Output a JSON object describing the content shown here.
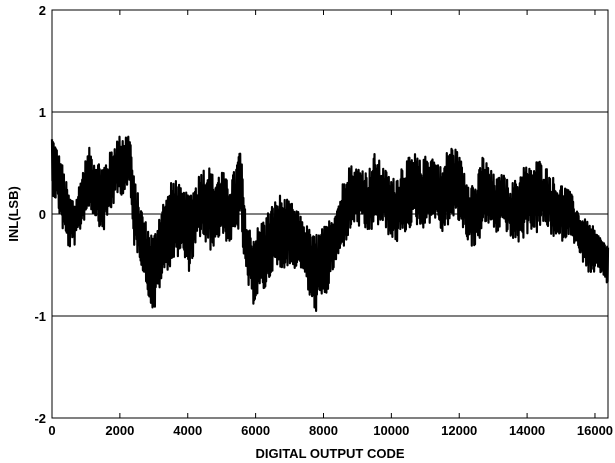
{
  "chart_data": {
    "type": "line",
    "xlabel": "DIGITAL OUTPUT CODE",
    "ylabel": "INL(LSB)",
    "xlim": [
      0,
      16384
    ],
    "ylim": [
      -2,
      2
    ],
    "x_ticks": [
      0,
      2000,
      4000,
      6000,
      8000,
      10000,
      12000,
      14000,
      16000
    ],
    "y_ticks": [
      -2,
      -1,
      0,
      1,
      2
    ],
    "grid": "horizontal",
    "series_color": "#000000",
    "envelope": [
      {
        "x": 0,
        "lo": 0.2,
        "hi": 0.8
      },
      {
        "x": 150,
        "lo": 0.1,
        "hi": 0.65
      },
      {
        "x": 300,
        "lo": -0.15,
        "hi": 0.5
      },
      {
        "x": 500,
        "lo": -0.35,
        "hi": 0.2
      },
      {
        "x": 700,
        "lo": -0.3,
        "hi": 0.15
      },
      {
        "x": 900,
        "lo": -0.1,
        "hi": 0.45
      },
      {
        "x": 1100,
        "lo": 0.05,
        "hi": 0.65
      },
      {
        "x": 1300,
        "lo": -0.05,
        "hi": 0.55
      },
      {
        "x": 1500,
        "lo": -0.2,
        "hi": 0.5
      },
      {
        "x": 1700,
        "lo": 0.0,
        "hi": 0.6
      },
      {
        "x": 1900,
        "lo": 0.15,
        "hi": 0.75
      },
      {
        "x": 2100,
        "lo": 0.2,
        "hi": 0.8
      },
      {
        "x": 2300,
        "lo": 0.25,
        "hi": 0.8
      },
      {
        "x": 2400,
        "lo": -0.3,
        "hi": 0.4
      },
      {
        "x": 2600,
        "lo": -0.45,
        "hi": 0.1
      },
      {
        "x": 2800,
        "lo": -0.75,
        "hi": -0.1
      },
      {
        "x": 3000,
        "lo": -1.0,
        "hi": -0.2
      },
      {
        "x": 3200,
        "lo": -0.7,
        "hi": 0.1
      },
      {
        "x": 3400,
        "lo": -0.55,
        "hi": 0.2
      },
      {
        "x": 3600,
        "lo": -0.5,
        "hi": 0.4
      },
      {
        "x": 3800,
        "lo": -0.35,
        "hi": 0.25
      },
      {
        "x": 4000,
        "lo": -0.6,
        "hi": 0.2
      },
      {
        "x": 4200,
        "lo": -0.4,
        "hi": 0.3
      },
      {
        "x": 4400,
        "lo": -0.2,
        "hi": 0.45
      },
      {
        "x": 4600,
        "lo": -0.4,
        "hi": 0.5
      },
      {
        "x": 4800,
        "lo": -0.3,
        "hi": 0.35
      },
      {
        "x": 5000,
        "lo": -0.2,
        "hi": 0.45
      },
      {
        "x": 5200,
        "lo": -0.3,
        "hi": 0.3
      },
      {
        "x": 5400,
        "lo": -0.25,
        "hi": 0.45
      },
      {
        "x": 5550,
        "lo": -0.1,
        "hi": 0.7
      },
      {
        "x": 5700,
        "lo": -0.6,
        "hi": 0.0
      },
      {
        "x": 5900,
        "lo": -0.9,
        "hi": -0.2
      },
      {
        "x": 6100,
        "lo": -0.8,
        "hi": -0.1
      },
      {
        "x": 6300,
        "lo": -0.75,
        "hi": 0.0
      },
      {
        "x": 6500,
        "lo": -0.55,
        "hi": 0.1
      },
      {
        "x": 6700,
        "lo": -0.6,
        "hi": 0.2
      },
      {
        "x": 6900,
        "lo": -0.5,
        "hi": 0.15
      },
      {
        "x": 7100,
        "lo": -0.55,
        "hi": 0.1
      },
      {
        "x": 7300,
        "lo": -0.5,
        "hi": 0.0
      },
      {
        "x": 7500,
        "lo": -0.7,
        "hi": -0.1
      },
      {
        "x": 7700,
        "lo": -1.0,
        "hi": -0.2
      },
      {
        "x": 7900,
        "lo": -0.9,
        "hi": -0.15
      },
      {
        "x": 8100,
        "lo": -0.8,
        "hi": -0.1
      },
      {
        "x": 8300,
        "lo": -0.55,
        "hi": 0.05
      },
      {
        "x": 8500,
        "lo": -0.4,
        "hi": 0.2
      },
      {
        "x": 8700,
        "lo": -0.25,
        "hi": 0.55
      },
      {
        "x": 8900,
        "lo": -0.1,
        "hi": 0.45
      },
      {
        "x": 9100,
        "lo": -0.15,
        "hi": 0.5
      },
      {
        "x": 9300,
        "lo": -0.2,
        "hi": 0.4
      },
      {
        "x": 9500,
        "lo": -0.15,
        "hi": 0.6
      },
      {
        "x": 9700,
        "lo": -0.1,
        "hi": 0.5
      },
      {
        "x": 9900,
        "lo": -0.2,
        "hi": 0.4
      },
      {
        "x": 10100,
        "lo": -0.3,
        "hi": 0.35
      },
      {
        "x": 10300,
        "lo": -0.25,
        "hi": 0.5
      },
      {
        "x": 10500,
        "lo": -0.15,
        "hi": 0.55
      },
      {
        "x": 10700,
        "lo": -0.1,
        "hi": 0.6
      },
      {
        "x": 10900,
        "lo": -0.15,
        "hi": 0.5
      },
      {
        "x": 11100,
        "lo": -0.1,
        "hi": 0.65
      },
      {
        "x": 11300,
        "lo": -0.05,
        "hi": 0.55
      },
      {
        "x": 11500,
        "lo": -0.2,
        "hi": 0.45
      },
      {
        "x": 11700,
        "lo": -0.1,
        "hi": 0.7
      },
      {
        "x": 11900,
        "lo": -0.05,
        "hi": 0.65
      },
      {
        "x": 12100,
        "lo": -0.15,
        "hi": 0.5
      },
      {
        "x": 12300,
        "lo": -0.3,
        "hi": 0.35
      },
      {
        "x": 12500,
        "lo": -0.35,
        "hi": 0.3
      },
      {
        "x": 12700,
        "lo": -0.15,
        "hi": 0.6
      },
      {
        "x": 12900,
        "lo": -0.1,
        "hi": 0.45
      },
      {
        "x": 13100,
        "lo": -0.2,
        "hi": 0.35
      },
      {
        "x": 13300,
        "lo": -0.1,
        "hi": 0.4
      },
      {
        "x": 13500,
        "lo": -0.25,
        "hi": 0.3
      },
      {
        "x": 13700,
        "lo": -0.3,
        "hi": 0.35
      },
      {
        "x": 13900,
        "lo": -0.25,
        "hi": 0.5
      },
      {
        "x": 14100,
        "lo": -0.15,
        "hi": 0.45
      },
      {
        "x": 14300,
        "lo": -0.2,
        "hi": 0.55
      },
      {
        "x": 14500,
        "lo": -0.1,
        "hi": 0.5
      },
      {
        "x": 14700,
        "lo": -0.2,
        "hi": 0.4
      },
      {
        "x": 14900,
        "lo": -0.3,
        "hi": 0.3
      },
      {
        "x": 15100,
        "lo": -0.25,
        "hi": 0.3
      },
      {
        "x": 15300,
        "lo": -0.2,
        "hi": 0.2
      },
      {
        "x": 15500,
        "lo": -0.4,
        "hi": 0.05
      },
      {
        "x": 15700,
        "lo": -0.5,
        "hi": -0.05
      },
      {
        "x": 15900,
        "lo": -0.65,
        "hi": -0.1
      },
      {
        "x": 16100,
        "lo": -0.55,
        "hi": -0.2
      },
      {
        "x": 16384,
        "lo": -0.7,
        "hi": -0.3
      }
    ]
  }
}
